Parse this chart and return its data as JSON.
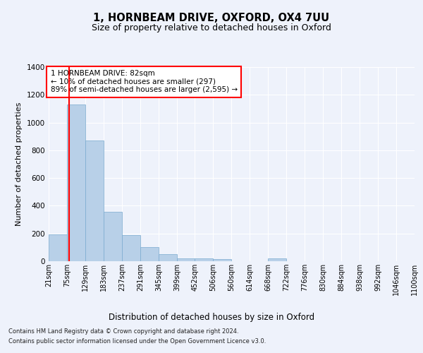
{
  "title": "1, HORNBEAM DRIVE, OXFORD, OX4 7UU",
  "subtitle": "Size of property relative to detached houses in Oxford",
  "xlabel": "Distribution of detached houses by size in Oxford",
  "ylabel": "Number of detached properties",
  "footnote1": "Contains HM Land Registry data © Crown copyright and database right 2024.",
  "footnote2": "Contains public sector information licensed under the Open Government Licence v3.0.",
  "annotation_text": "1 HORNBEAM DRIVE: 82sqm\n← 10% of detached houses are smaller (297)\n89% of semi-detached houses are larger (2,595) →",
  "bar_color": "#b8d0e8",
  "bar_edge_color": "#7aaacf",
  "red_line_x": 82,
  "ylim": [
    0,
    1400
  ],
  "yticks": [
    0,
    200,
    400,
    600,
    800,
    1000,
    1200,
    1400
  ],
  "bin_edges": [
    21,
    75,
    129,
    183,
    237,
    291,
    345,
    399,
    452,
    506,
    560,
    614,
    668,
    722,
    776,
    830,
    884,
    938,
    992,
    1046,
    1100
  ],
  "bar_heights": [
    195,
    1130,
    870,
    355,
    190,
    100,
    50,
    22,
    18,
    15,
    0,
    0,
    22,
    0,
    0,
    0,
    0,
    0,
    0,
    0
  ],
  "background_color": "#eef2fb",
  "plot_bg_color": "#eef2fb",
  "grid_color": "#ffffff",
  "title_fontsize": 10.5,
  "subtitle_fontsize": 9,
  "ylabel_fontsize": 8,
  "xlabel_fontsize": 8.5,
  "tick_label_fontsize": 7,
  "annotation_fontsize": 7.5,
  "footnote_fontsize": 6
}
